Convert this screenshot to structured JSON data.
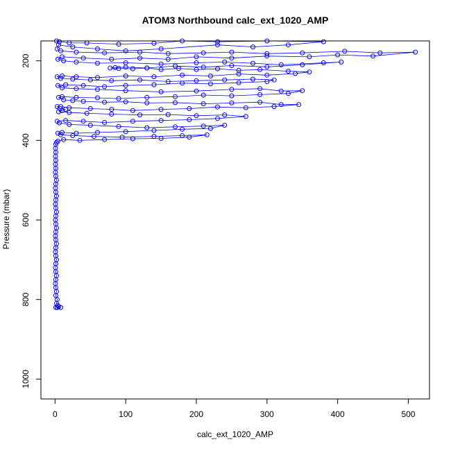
{
  "chart_data": {
    "type": "scatter",
    "title": "ATOM3 Northbound calc_ext_1020_AMP",
    "xlabel": "calc_ext_1020_AMP",
    "ylabel": "Pressure (mbar)",
    "xlim": [
      -20,
      530
    ],
    "ylim": [
      1050,
      150
    ],
    "y_reversed": true,
    "xticks": [
      0,
      100,
      200,
      300,
      400,
      500
    ],
    "yticks": [
      200,
      400,
      600,
      800,
      1000
    ],
    "series_color": "#0000ff",
    "series": [
      {
        "name": "",
        "points": [
          [
            2,
            150
          ],
          [
            6,
            152
          ],
          [
            20,
            155
          ],
          [
            45,
            155
          ],
          [
            90,
            158
          ],
          [
            140,
            156
          ],
          [
            180,
            150
          ],
          [
            230,
            152
          ],
          [
            300,
            150
          ],
          [
            380,
            152
          ],
          [
            330,
            160
          ],
          [
            280,
            165
          ],
          [
            230,
            160
          ],
          [
            150,
            170
          ],
          [
            100,
            175
          ],
          [
            60,
            170
          ],
          [
            25,
            165
          ],
          [
            5,
            160
          ],
          [
            3,
            170
          ],
          [
            8,
            175
          ],
          [
            30,
            178
          ],
          [
            70,
            180
          ],
          [
            120,
            178
          ],
          [
            160,
            182
          ],
          [
            210,
            180
          ],
          [
            250,
            178
          ],
          [
            300,
            182
          ],
          [
            350,
            180
          ],
          [
            410,
            176
          ],
          [
            460,
            180
          ],
          [
            510,
            178
          ],
          [
            450,
            188
          ],
          [
            400,
            185
          ],
          [
            360,
            190
          ],
          [
            300,
            188
          ],
          [
            250,
            193
          ],
          [
            200,
            190
          ],
          [
            160,
            196
          ],
          [
            120,
            193
          ],
          [
            80,
            196
          ],
          [
            40,
            193
          ],
          [
            10,
            190
          ],
          [
            4,
            196
          ],
          [
            12,
            200
          ],
          [
            30,
            203
          ],
          [
            60,
            206
          ],
          [
            100,
            205
          ],
          [
            150,
            208
          ],
          [
            200,
            205
          ],
          [
            240,
            203
          ],
          [
            280,
            206
          ],
          [
            320,
            210
          ],
          [
            380,
            205
          ],
          [
            405,
            203
          ],
          [
            350,
            210
          ],
          [
            300,
            215
          ],
          [
            250,
            212
          ],
          [
            210,
            216
          ],
          [
            170,
            213
          ],
          [
            130,
            218
          ],
          [
            100,
            216
          ],
          [
            85,
            217
          ],
          [
            78,
            218
          ],
          [
            90,
            219
          ],
          [
            110,
            220
          ],
          [
            130,
            218
          ],
          [
            150,
            222
          ],
          [
            175,
            219
          ],
          [
            200,
            222
          ],
          [
            230,
            220
          ],
          [
            260,
            224
          ],
          [
            290,
            222
          ],
          [
            330,
            226
          ],
          [
            360,
            228
          ],
          [
            340,
            232
          ],
          [
            300,
            236
          ],
          [
            260,
            233
          ],
          [
            220,
            238
          ],
          [
            180,
            236
          ],
          [
            140,
            240
          ],
          [
            100,
            238
          ],
          [
            60,
            242
          ],
          [
            30,
            240
          ],
          [
            10,
            238
          ],
          [
            3,
            240
          ],
          [
            8,
            244
          ],
          [
            25,
            246
          ],
          [
            50,
            248
          ],
          [
            80,
            250
          ],
          [
            120,
            248
          ],
          [
            160,
            252
          ],
          [
            200,
            250
          ],
          [
            240,
            248
          ],
          [
            280,
            246
          ],
          [
            310,
            248
          ],
          [
            300,
            252
          ],
          [
            260,
            255
          ],
          [
            220,
            258
          ],
          [
            180,
            256
          ],
          [
            140,
            260
          ],
          [
            100,
            262
          ],
          [
            70,
            265
          ],
          [
            40,
            262
          ],
          [
            15,
            260
          ],
          [
            4,
            262
          ],
          [
            10,
            268
          ],
          [
            30,
            270
          ],
          [
            60,
            272
          ],
          [
            100,
            275
          ],
          [
            150,
            278
          ],
          [
            200,
            276
          ],
          [
            250,
            272
          ],
          [
            290,
            270
          ],
          [
            320,
            276
          ],
          [
            350,
            275
          ],
          [
            330,
            282
          ],
          [
            290,
            285
          ],
          [
            250,
            288
          ],
          [
            210,
            286
          ],
          [
            170,
            290
          ],
          [
            130,
            292
          ],
          [
            90,
            295
          ],
          [
            60,
            293
          ],
          [
            30,
            292
          ],
          [
            10,
            290
          ],
          [
            5,
            292
          ],
          [
            12,
            298
          ],
          [
            25,
            300
          ],
          [
            40,
            302
          ],
          [
            70,
            304
          ],
          [
            100,
            303
          ],
          [
            130,
            306
          ],
          [
            170,
            305
          ],
          [
            210,
            308
          ],
          [
            250,
            306
          ],
          [
            290,
            304
          ],
          [
            320,
            310
          ],
          [
            345,
            310
          ],
          [
            310,
            315
          ],
          [
            270,
            318
          ],
          [
            230,
            316
          ],
          [
            190,
            320
          ],
          [
            150,
            322
          ],
          [
            110,
            325
          ],
          [
            80,
            322
          ],
          [
            50,
            320
          ],
          [
            20,
            318
          ],
          [
            8,
            315
          ],
          [
            3,
            315
          ],
          [
            7,
            320
          ],
          [
            15,
            322
          ],
          [
            10,
            325
          ],
          [
            5,
            328
          ],
          [
            20,
            330
          ],
          [
            45,
            332
          ],
          [
            80,
            334
          ],
          [
            120,
            336
          ],
          [
            160,
            335
          ],
          [
            200,
            338
          ],
          [
            240,
            336
          ],
          [
            270,
            340
          ],
          [
            230,
            345
          ],
          [
            190,
            348
          ],
          [
            150,
            350
          ],
          [
            110,
            352
          ],
          [
            70,
            355
          ],
          [
            40,
            352
          ],
          [
            15,
            350
          ],
          [
            3,
            352
          ],
          [
            6,
            356
          ],
          [
            20,
            360
          ],
          [
            50,
            362
          ],
          [
            90,
            365
          ],
          [
            130,
            368
          ],
          [
            170,
            366
          ],
          [
            210,
            364
          ],
          [
            240,
            362
          ],
          [
            220,
            370
          ],
          [
            180,
            372
          ],
          [
            140,
            375
          ],
          [
            100,
            378
          ],
          [
            60,
            380
          ],
          [
            30,
            382
          ],
          [
            10,
            380
          ],
          [
            4,
            382
          ],
          [
            8,
            386
          ],
          [
            25,
            388
          ],
          [
            55,
            390
          ],
          [
            95,
            392
          ],
          [
            140,
            390
          ],
          [
            180,
            388
          ],
          [
            215,
            386
          ],
          [
            190,
            392
          ],
          [
            150,
            395
          ],
          [
            110,
            396
          ],
          [
            70,
            398
          ],
          [
            35,
            400
          ],
          [
            12,
            398
          ],
          [
            4,
            402
          ],
          [
            2,
            405
          ],
          [
            1,
            410
          ],
          [
            0.5,
            420
          ],
          [
            1,
            430
          ],
          [
            0.5,
            440
          ],
          [
            1,
            450
          ],
          [
            0.5,
            460
          ],
          [
            1,
            470
          ],
          [
            0.5,
            480
          ],
          [
            1,
            490
          ],
          [
            2,
            500
          ],
          [
            1,
            510
          ],
          [
            0.5,
            520
          ],
          [
            1,
            530
          ],
          [
            2,
            540
          ],
          [
            1,
            550
          ],
          [
            0.5,
            560
          ],
          [
            1,
            570
          ],
          [
            2,
            580
          ],
          [
            1,
            590
          ],
          [
            0.5,
            600
          ],
          [
            1,
            610
          ],
          [
            2,
            620
          ],
          [
            1,
            630
          ],
          [
            0.5,
            640
          ],
          [
            1,
            650
          ],
          [
            2,
            660
          ],
          [
            1,
            670
          ],
          [
            0.5,
            680
          ],
          [
            1,
            690
          ],
          [
            2,
            700
          ],
          [
            1,
            710
          ],
          [
            0.5,
            720
          ],
          [
            1,
            730
          ],
          [
            2,
            740
          ],
          [
            1,
            750
          ],
          [
            0.5,
            760
          ],
          [
            1,
            770
          ],
          [
            2,
            780
          ],
          [
            1,
            790
          ],
          [
            3,
            800
          ],
          [
            2,
            810
          ],
          [
            4,
            815
          ],
          [
            5,
            818
          ],
          [
            1,
            820
          ],
          [
            3,
            820
          ],
          [
            8,
            820
          ]
        ]
      }
    ]
  }
}
